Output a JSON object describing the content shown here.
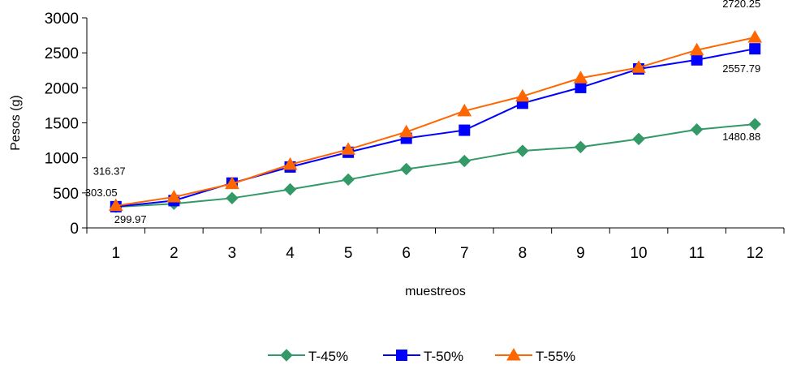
{
  "chart_data": {
    "type": "line",
    "title": "",
    "xlabel": "muestreos",
    "ylabel": "Pesos (g)",
    "ylim": [
      0,
      3000
    ],
    "yticks": [
      0,
      500,
      1000,
      1500,
      2000,
      2500,
      3000
    ],
    "categories": [
      "1",
      "2",
      "3",
      "4",
      "5",
      "6",
      "7",
      "8",
      "9",
      "10",
      "11",
      "12"
    ],
    "grid": false,
    "legend_position": "bottom",
    "series": [
      {
        "name": "T-45%",
        "color": "#339966",
        "marker": "diamond",
        "values": [
          299.97,
          345,
          425,
          550,
          690,
          840,
          955,
          1100,
          1155,
          1270,
          1405,
          1480.88
        ]
      },
      {
        "name": "T-50%",
        "color": "#0000ff",
        "marker": "square",
        "values": [
          303.05,
          390,
          640,
          870,
          1080,
          1280,
          1395,
          1780,
          2005,
          2270,
          2400,
          2557.79
        ]
      },
      {
        "name": "T-55%",
        "color": "#ff6600",
        "marker": "triangle",
        "values": [
          316.37,
          440,
          630,
          905,
          1120,
          1370,
          1670,
          1880,
          2140,
          2290,
          2540,
          2720.25
        ]
      }
    ],
    "annotations": [
      {
        "text": "316.37",
        "series": 2,
        "index": 0
      },
      {
        "text": "303.05",
        "series": 1,
        "index": 0
      },
      {
        "text": "299.97",
        "series": 0,
        "index": 0
      },
      {
        "text": "2720.25",
        "series": 2,
        "index": 11
      },
      {
        "text": "2557.79",
        "series": 1,
        "index": 11
      },
      {
        "text": "1480.88",
        "series": 0,
        "index": 11
      }
    ]
  }
}
